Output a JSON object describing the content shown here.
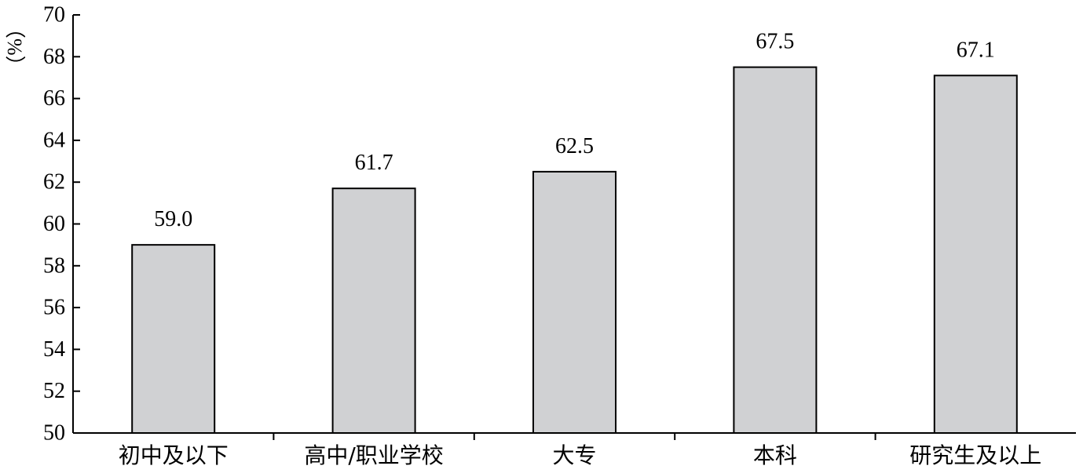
{
  "chart_data": {
    "type": "bar",
    "title": "",
    "xlabel": "",
    "ylabel": "",
    "unit": "%",
    "unit_display": "（%）",
    "categories": [
      "初中及以下",
      "高中/职业学校",
      "大专",
      "本科",
      "研究生及以上"
    ],
    "values": [
      59.0,
      61.7,
      62.5,
      67.5,
      67.1
    ],
    "value_labels": [
      "59.0",
      "61.7",
      "62.5",
      "67.5",
      "67.1"
    ],
    "ylim": [
      50,
      70
    ],
    "yticks": [
      50,
      52,
      54,
      56,
      58,
      60,
      62,
      64,
      66,
      68,
      70
    ],
    "grid": false,
    "legend": "none",
    "bar_color": "#d0d1d3",
    "edge_color": "#000000"
  }
}
